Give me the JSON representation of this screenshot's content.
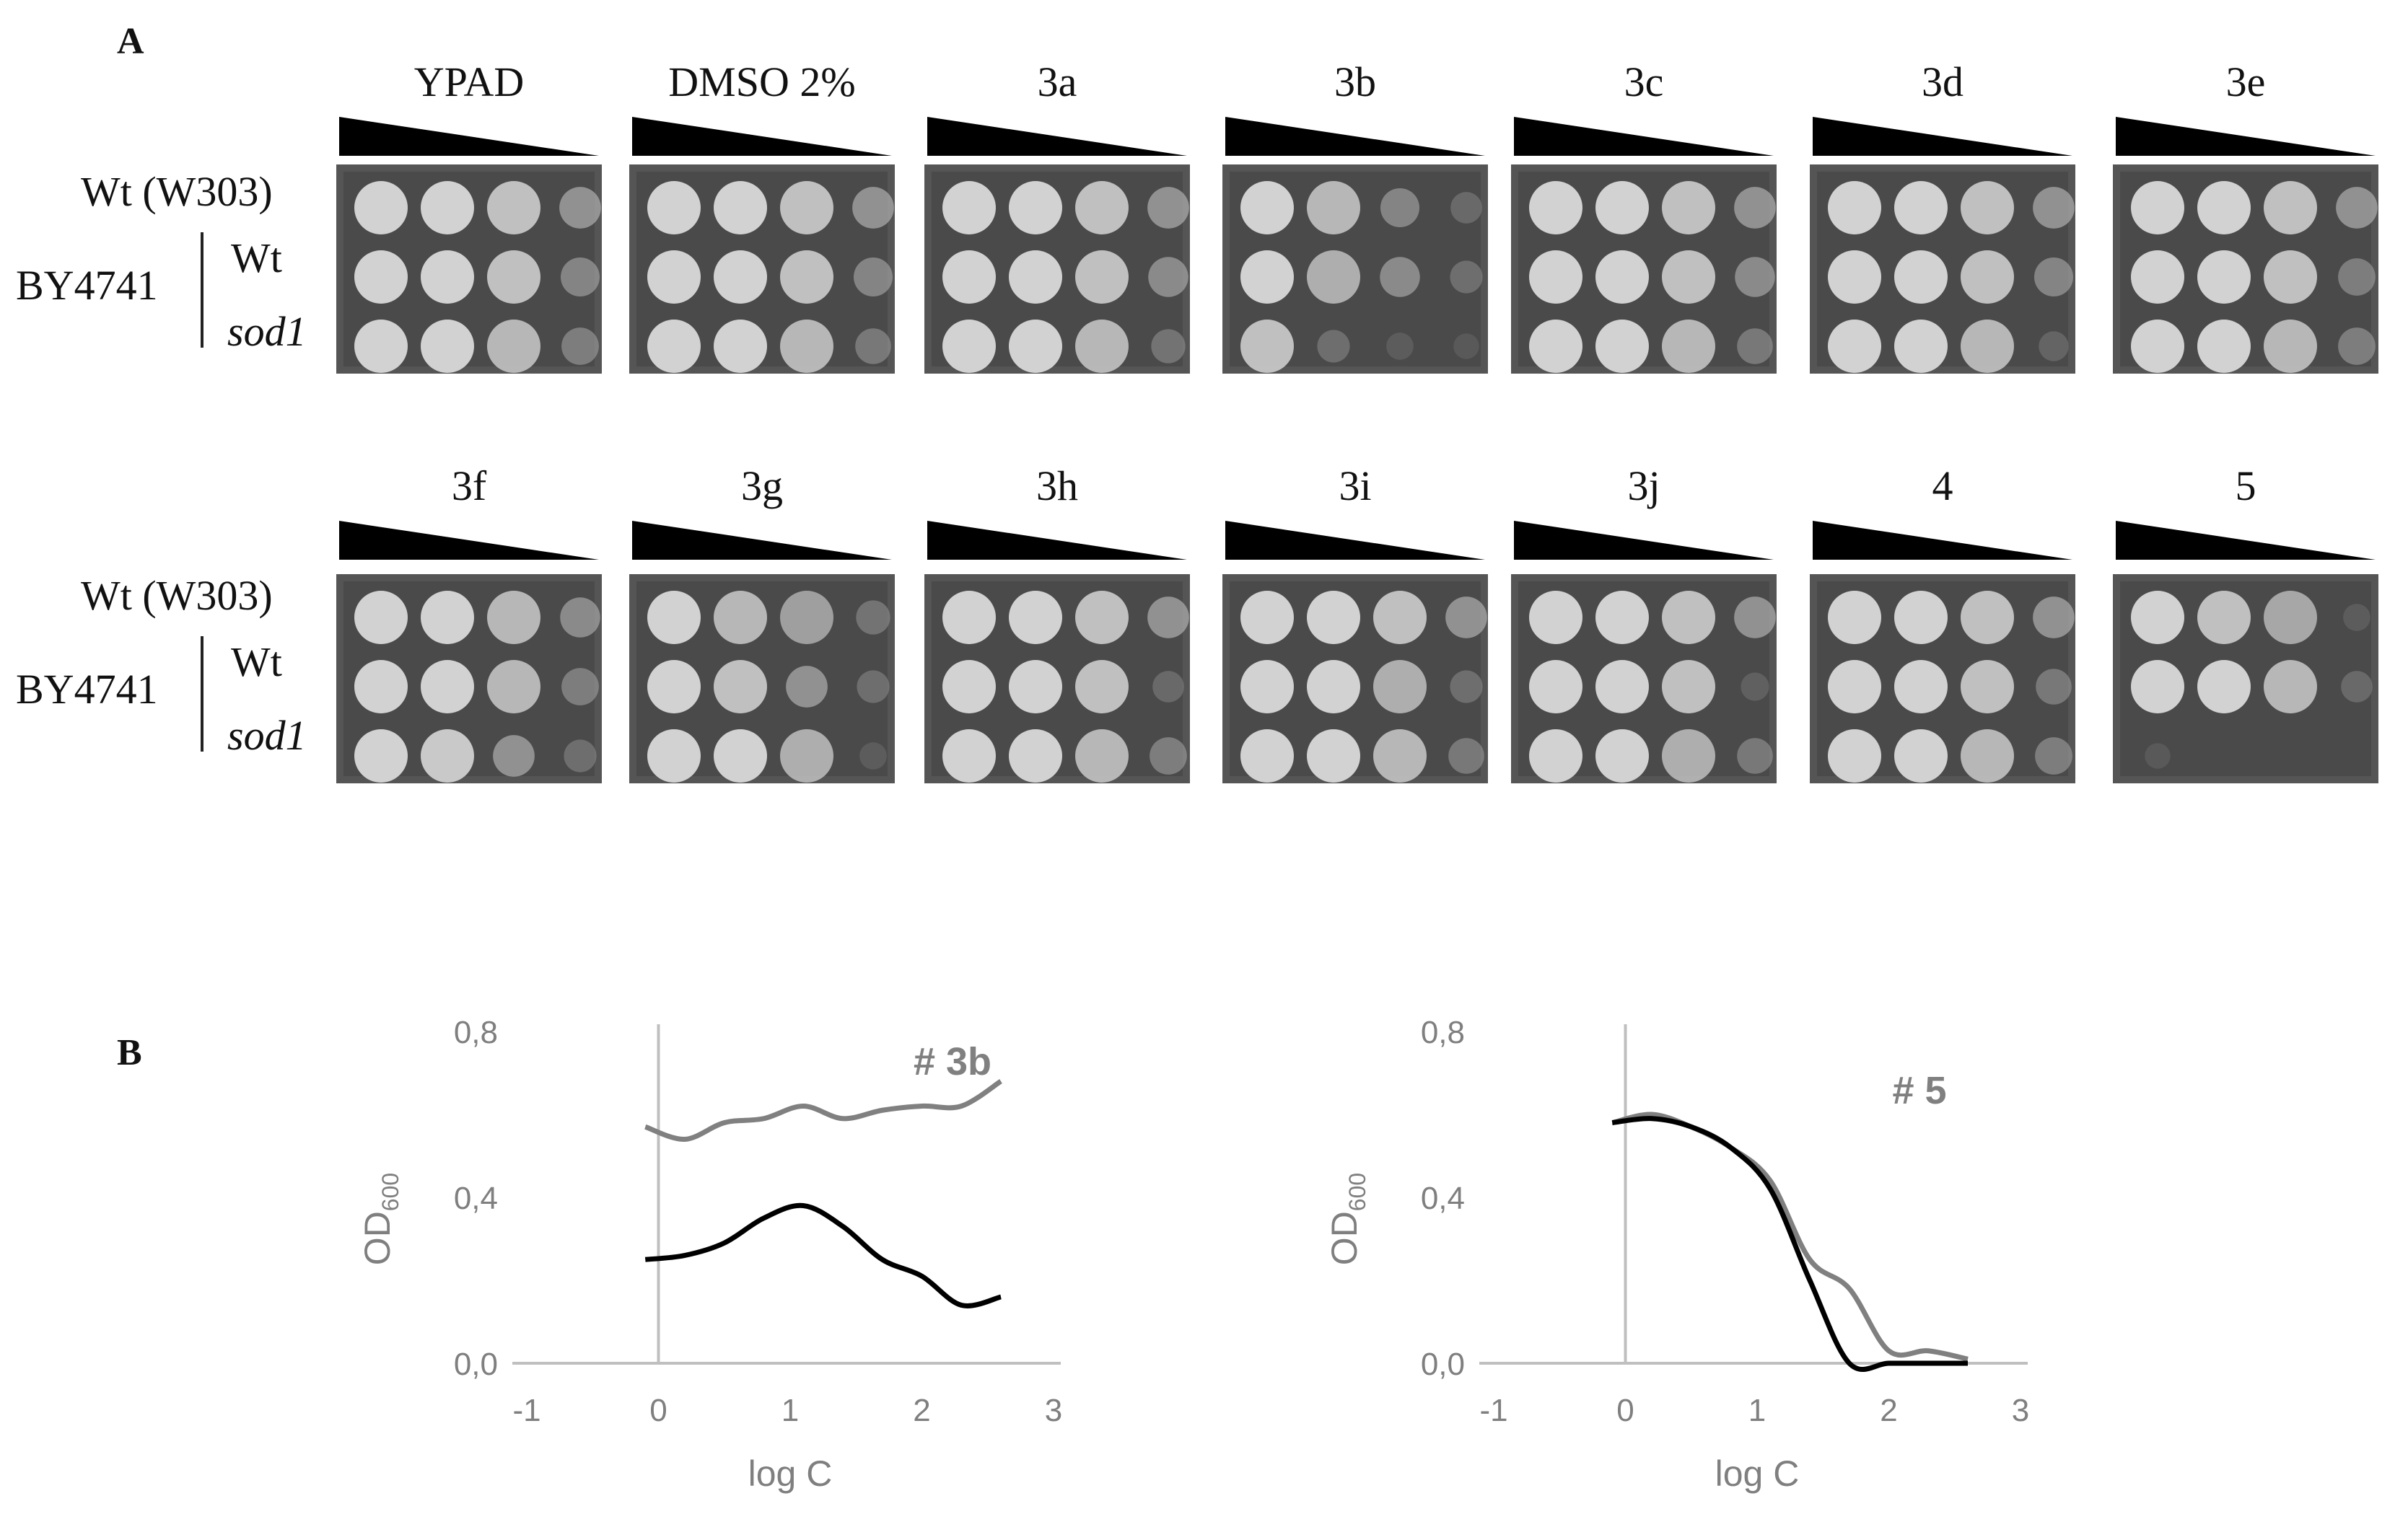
{
  "panel_a": {
    "letter": "A",
    "row_labels": {
      "w303": "Wt (W303)",
      "by4741": "BY4741",
      "wt": "Wt",
      "sod1": "sod1"
    },
    "top_row": [
      {
        "label": "YPAD",
        "growth": [
          [
            1,
            1,
            0.9,
            0.6
          ],
          [
            1,
            1,
            0.9,
            0.5
          ],
          [
            1,
            1,
            0.85,
            0.45
          ]
        ]
      },
      {
        "label": "DMSO 2%",
        "growth": [
          [
            1,
            1,
            0.9,
            0.6
          ],
          [
            1,
            1,
            0.9,
            0.5
          ],
          [
            1,
            1,
            0.85,
            0.4
          ]
        ]
      },
      {
        "label": "3a",
        "growth": [
          [
            1,
            1,
            0.9,
            0.6
          ],
          [
            1,
            1,
            0.9,
            0.55
          ],
          [
            1,
            1,
            0.85,
            0.35
          ]
        ]
      },
      {
        "label": "3b",
        "growth": [
          [
            1,
            0.85,
            0.5,
            0.25
          ],
          [
            1,
            0.8,
            0.55,
            0.3
          ],
          [
            0.9,
            0.3,
            0.1,
            0.05
          ]
        ]
      },
      {
        "label": "3c",
        "growth": [
          [
            1,
            1,
            0.9,
            0.6
          ],
          [
            1,
            1,
            0.9,
            0.55
          ],
          [
            1,
            1,
            0.85,
            0.4
          ]
        ]
      },
      {
        "label": "3d",
        "growth": [
          [
            1,
            1,
            0.9,
            0.6
          ],
          [
            1,
            1,
            0.9,
            0.5
          ],
          [
            1,
            1,
            0.85,
            0.2
          ]
        ]
      },
      {
        "label": "3e",
        "growth": [
          [
            1,
            1,
            0.9,
            0.6
          ],
          [
            1,
            1,
            0.9,
            0.45
          ],
          [
            1,
            1,
            0.85,
            0.45
          ]
        ]
      }
    ],
    "bottom_row": [
      {
        "label": "3f",
        "growth": [
          [
            1,
            1,
            0.85,
            0.55
          ],
          [
            1,
            1,
            0.85,
            0.45
          ],
          [
            1,
            0.95,
            0.6,
            0.3
          ]
        ]
      },
      {
        "label": "3g",
        "growth": [
          [
            1,
            0.85,
            0.7,
            0.35
          ],
          [
            1,
            0.9,
            0.6,
            0.3
          ],
          [
            1,
            1,
            0.8,
            0.1
          ]
        ]
      },
      {
        "label": "3h",
        "growth": [
          [
            1,
            1,
            0.9,
            0.6
          ],
          [
            1,
            1,
            0.9,
            0.25
          ],
          [
            1,
            1,
            0.85,
            0.45
          ]
        ]
      },
      {
        "label": "3i",
        "growth": [
          [
            1,
            1,
            0.9,
            0.6
          ],
          [
            1,
            1,
            0.8,
            0.3
          ],
          [
            1,
            1,
            0.85,
            0.4
          ]
        ]
      },
      {
        "label": "3j",
        "growth": [
          [
            1,
            1,
            0.9,
            0.6
          ],
          [
            1,
            1,
            0.9,
            0.15
          ],
          [
            1,
            1,
            0.8,
            0.4
          ]
        ]
      },
      {
        "label": "4",
        "growth": [
          [
            1,
            1,
            0.9,
            0.6
          ],
          [
            1,
            1,
            0.9,
            0.4
          ],
          [
            1,
            1,
            0.85,
            0.45
          ]
        ]
      },
      {
        "label": "5",
        "growth": [
          [
            1,
            0.9,
            0.75,
            0.1
          ],
          [
            1,
            1,
            0.85,
            0.25
          ],
          [
            0.05,
            0,
            0,
            0
          ]
        ]
      }
    ]
  },
  "panel_b": {
    "letter": "B",
    "chart_data": [
      {
        "type": "line",
        "annotation": "# 3b",
        "xlabel": "log C",
        "ylabel": "OD600",
        "xlim": [
          -1,
          3
        ],
        "ylim": [
          0.0,
          0.8
        ],
        "x_ticks": [
          "-1",
          "0",
          "1",
          "2",
          "3"
        ],
        "y_ticks": [
          "0,0",
          "0,4",
          "0,8"
        ],
        "series": [
          {
            "color": "#808080",
            "x": [
              -0.1,
              0.2,
              0.5,
              0.8,
              1.1,
              1.4,
              1.7,
              2.0,
              2.3,
              2.6
            ],
            "y": [
              0.57,
              0.54,
              0.58,
              0.59,
              0.62,
              0.59,
              0.61,
              0.62,
              0.62,
              0.68
            ]
          },
          {
            "color": "#000000",
            "x": [
              -0.1,
              0.2,
              0.5,
              0.8,
              1.1,
              1.4,
              1.7,
              2.0,
              2.3,
              2.6
            ],
            "y": [
              0.25,
              0.26,
              0.29,
              0.35,
              0.38,
              0.33,
              0.25,
              0.21,
              0.14,
              0.16
            ]
          }
        ]
      },
      {
        "type": "line",
        "annotation": "# 5",
        "xlabel": "log C",
        "ylabel": "OD600",
        "xlim": [
          -1,
          3
        ],
        "ylim": [
          0.0,
          0.8
        ],
        "x_ticks": [
          "-1",
          "0",
          "1",
          "2",
          "3"
        ],
        "y_ticks": [
          "0,0",
          "0,4",
          "0,8"
        ],
        "series": [
          {
            "color": "#808080",
            "x": [
              -0.1,
              0.2,
              0.5,
              0.8,
              1.1,
              1.4,
              1.7,
              2.0,
              2.3,
              2.6
            ],
            "y": [
              0.58,
              0.6,
              0.57,
              0.52,
              0.44,
              0.25,
              0.18,
              0.03,
              0.03,
              0.01
            ]
          },
          {
            "color": "#000000",
            "x": [
              -0.1,
              0.2,
              0.5,
              0.8,
              1.1,
              1.4,
              1.7,
              2.0,
              2.3,
              2.6
            ],
            "y": [
              0.58,
              0.59,
              0.57,
              0.52,
              0.42,
              0.2,
              0.0,
              0.0,
              0.0,
              0.0
            ]
          }
        ]
      }
    ]
  }
}
